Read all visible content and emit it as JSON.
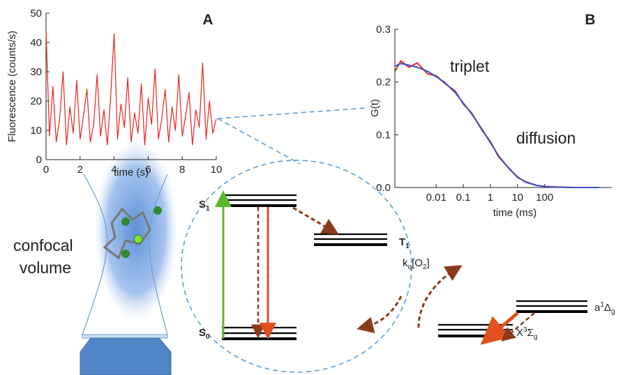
{
  "chart_data": [
    {
      "type": "line",
      "title": "A",
      "xlabel": "time (s)",
      "ylabel": "Fluorescence (counts/s)",
      "x": [
        0,
        0.2,
        0.4,
        0.6,
        0.8,
        1,
        1.2,
        1.4,
        1.6,
        1.8,
        2,
        2.2,
        2.4,
        2.6,
        2.8,
        3,
        3.2,
        3.4,
        3.6,
        3.8,
        4,
        4.2,
        4.4,
        4.6,
        4.8,
        5,
        5.2,
        5.4,
        5.6,
        5.8,
        6,
        6.2,
        6.4,
        6.6,
        6.8,
        7,
        7.2,
        7.4,
        7.6,
        7.8,
        8,
        8.2,
        8.4,
        8.6,
        8.8,
        9,
        9.2,
        9.4,
        9.6,
        9.8,
        10
      ],
      "values": [
        44,
        8,
        25,
        6,
        14,
        30,
        5,
        18,
        9,
        27,
        7,
        15,
        24,
        6,
        12,
        29,
        8,
        17,
        5,
        22,
        43,
        7,
        19,
        11,
        28,
        6,
        16,
        9,
        26,
        5,
        21,
        12,
        31,
        7,
        14,
        24,
        6,
        18,
        10,
        29,
        8,
        15,
        23,
        5,
        17,
        11,
        33,
        7,
        20,
        9,
        14
      ],
      "color": "#e8231c",
      "xlim": [
        0,
        10
      ],
      "ylim": [
        0,
        50
      ],
      "xticks": [
        0,
        2,
        4,
        6,
        8,
        10
      ],
      "yticks": [
        0,
        10,
        20,
        30,
        40,
        50
      ],
      "xlog": false,
      "grid": false
    },
    {
      "type": "line",
      "title": "B",
      "xlabel": "time (ms)",
      "ylabel": "G(t)",
      "annotations": [
        "triplet",
        "diffusion"
      ],
      "x": [
        0.0003,
        0.0005,
        0.001,
        0.002,
        0.005,
        0.01,
        0.02,
        0.05,
        0.1,
        0.2,
        0.5,
        1,
        2,
        5,
        10,
        20,
        50,
        100,
        300,
        1000,
        10000
      ],
      "series": [
        {
          "color": "#e8231c",
          "values": [
            0.22,
            0.24,
            0.228,
            0.236,
            0.215,
            0.212,
            0.198,
            0.183,
            0.158,
            0.142,
            0.108,
            0.087,
            0.058,
            0.036,
            0.019,
            0.011,
            0.004,
            0.002,
            0.001,
            0,
            0
          ]
        },
        {
          "color": "#3b4fc4",
          "values": [
            0.23,
            0.235,
            0.232,
            0.228,
            0.22,
            0.21,
            0.2,
            0.18,
            0.16,
            0.14,
            0.11,
            0.085,
            0.06,
            0.035,
            0.02,
            0.01,
            0.004,
            0.002,
            0.0005,
            0,
            0
          ]
        }
      ],
      "xlim": [
        0.0003,
        30000
      ],
      "ylim": [
        0,
        0.3
      ],
      "xlog": true,
      "grid": false,
      "xticks": [
        0.01,
        0.1,
        1,
        10,
        100
      ],
      "yticks": [
        {
          "value": 0,
          "label": "0.0"
        },
        0.1,
        0.2,
        0.3
      ]
    }
  ],
  "diagram": {
    "confocal": [
      "confocal",
      "volume"
    ],
    "s1": [
      "S",
      "1"
    ],
    "s0": [
      "S",
      "0"
    ],
    "t1": [
      "T",
      "1"
    ],
    "kq": [
      "k",
      "q",
      "[O",
      "2",
      "]"
    ],
    "a1dg": [
      "a",
      "1",
      "Δ",
      "g"
    ],
    "x3sg": [
      "X",
      "3",
      "Σ",
      "g"
    ]
  }
}
